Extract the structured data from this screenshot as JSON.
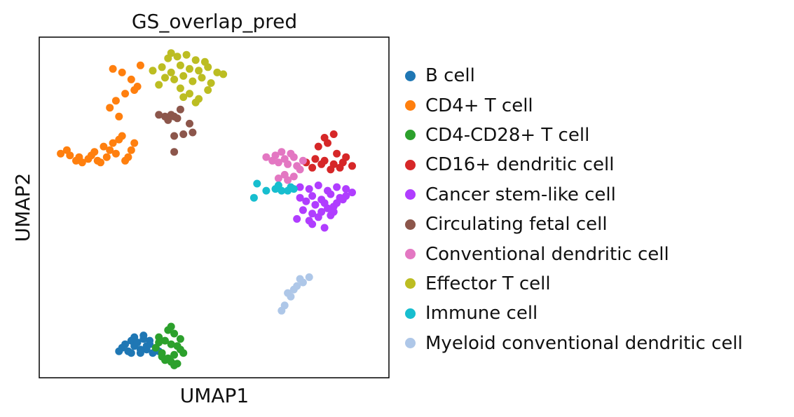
{
  "chart_data": {
    "type": "scatter",
    "title": "GS_overlap_pred",
    "xlabel": "UMAP1",
    "ylabel": "UMAP2",
    "grid": false,
    "legend_placement": "right, outside plot",
    "series": [
      {
        "name": "B cell",
        "color": "#1f77b4",
        "x": [
          -4.2,
          -4.0,
          -3.8,
          -3.6,
          -3.4,
          -3.3,
          -3.1,
          -3.0,
          -3.9,
          -3.7,
          -3.5,
          -3.2,
          -4.1,
          -3.8,
          -3.4,
          -3.6,
          -3.9,
          -3.3,
          -4.3,
          -3.5
        ],
        "y": [
          -8.6,
          -8.8,
          -8.5,
          -8.9,
          -8.7,
          -8.4,
          -8.6,
          -8.8,
          -8.2,
          -8.3,
          -8.1,
          -8.9,
          -8.4,
          -8.0,
          -8.5,
          -8.7,
          -8.9,
          -8.2,
          -8.8,
          -7.9
        ]
      },
      {
        "name": "CD4+ T cell",
        "color": "#ff7f0e",
        "x": [
          -6.2,
          -5.9,
          -5.6,
          -5.3,
          -5.0,
          -4.7,
          -4.4,
          -4.6,
          -4.8,
          -5.1,
          -4.5,
          -4.3,
          -4.9,
          -4.2,
          -4.1,
          -4.0,
          -3.9,
          -3.8,
          -4.3,
          -4.6,
          -4.4,
          -4.1,
          -3.7,
          -3.9,
          -4.2,
          -4.5,
          -3.6,
          -3.8,
          -5.7,
          -6.0,
          -5.5,
          -5.2
        ],
        "y": [
          2.4,
          2.3,
          2.2,
          2.1,
          2.0,
          2.2,
          2.4,
          2.6,
          2.8,
          2.5,
          3.0,
          3.2,
          1.9,
          3.4,
          2.0,
          2.2,
          2.6,
          3.0,
          4.5,
          5.0,
          5.4,
          5.8,
          6.2,
          6.6,
          7.0,
          7.2,
          7.4,
          6.0,
          2.0,
          2.6,
          1.9,
          2.3
        ]
      },
      {
        "name": "CD4-CD28+ T cell",
        "color": "#2ca02c",
        "x": [
          -3.1,
          -2.9,
          -2.7,
          -2.5,
          -2.3,
          -2.6,
          -2.8,
          -3.0,
          -2.4,
          -2.2,
          -2.6,
          -2.9,
          -2.5,
          -2.7,
          -2.3,
          -2.8,
          -3.0,
          -2.6,
          -2.4,
          -2.5
        ],
        "y": [
          -8.6,
          -8.9,
          -9.2,
          -9.0,
          -8.7,
          -8.4,
          -8.2,
          -8.0,
          -8.5,
          -8.9,
          -9.4,
          -9.1,
          -7.8,
          -7.6,
          -8.1,
          -9.3,
          -8.3,
          -7.4,
          -9.5,
          -9.6
        ]
      },
      {
        "name": "CD16+ dendritic cell",
        "color": "#d62728",
        "x": [
          1.8,
          2.1,
          2.4,
          2.7,
          3.0,
          3.3,
          2.9,
          2.6,
          2.3,
          2.0,
          2.8,
          3.1,
          2.5,
          2.2,
          2.7,
          2.4
        ],
        "y": [
          1.9,
          2.1,
          2.0,
          1.8,
          1.9,
          1.7,
          1.6,
          1.5,
          1.8,
          1.6,
          2.4,
          2.2,
          3.0,
          2.8,
          3.5,
          3.3
        ]
      },
      {
        "name": "Cancer stem-like cell",
        "color": "#b03dff",
        "x": [
          1.6,
          1.9,
          2.2,
          2.5,
          2.8,
          3.1,
          3.3,
          2.0,
          2.3,
          2.6,
          2.9,
          1.8,
          2.1,
          2.4,
          2.7,
          3.0,
          1.7,
          2.0,
          2.3,
          2.6,
          1.5,
          1.9,
          2.2,
          2.5,
          2.8,
          3.1,
          2.0,
          2.4,
          1.6,
          2.7
        ],
        "y": [
          0.5,
          0.4,
          0.6,
          0.3,
          0.5,
          0.4,
          0.2,
          0.0,
          -0.2,
          0.1,
          -0.1,
          -0.3,
          -0.5,
          -0.4,
          -0.6,
          -0.2,
          -0.8,
          -1.0,
          -0.9,
          -1.1,
          -1.3,
          -1.4,
          -1.2,
          -0.7,
          -0.4,
          0.0,
          -1.6,
          -1.8,
          -0.1,
          -0.9
        ]
      },
      {
        "name": "Circulating fetal cell",
        "color": "#8c564b",
        "x": [
          -3.0,
          -2.8,
          -2.6,
          -2.4,
          -2.7,
          -2.5,
          -2.3,
          -2.0,
          -1.9,
          -2.5,
          -2.2,
          -2.5
        ],
        "y": [
          4.6,
          4.5,
          4.6,
          4.4,
          4.3,
          4.5,
          4.9,
          4.1,
          3.6,
          3.4,
          3.5,
          2.5
        ]
      },
      {
        "name": "Conventional dendritic cell",
        "color": "#e377c2",
        "x": [
          0.5,
          0.8,
          1.1,
          1.4,
          1.7,
          0.9,
          1.2,
          1.5,
          0.7,
          1.0,
          1.3,
          1.6,
          1.1,
          1.4,
          0.9,
          1.2
        ],
        "y": [
          2.2,
          2.3,
          2.1,
          2.2,
          2.0,
          1.9,
          1.8,
          1.7,
          2.0,
          2.5,
          2.4,
          1.5,
          1.2,
          1.1,
          1.0,
          0.9
        ]
      },
      {
        "name": "Effector T cell",
        "color": "#bcbd22",
        "x": [
          -3.2,
          -2.9,
          -2.6,
          -2.3,
          -2.0,
          -1.7,
          -1.4,
          -1.1,
          -0.9,
          -2.8,
          -2.5,
          -2.2,
          -1.9,
          -1.6,
          -1.3,
          -2.7,
          -2.4,
          -2.1,
          -1.8,
          -1.5,
          -2.3,
          -2.0,
          -1.7,
          -3.0,
          -1.8,
          -2.6,
          -1.4,
          -2.2
        ],
        "y": [
          7.1,
          7.3,
          7.0,
          7.4,
          7.2,
          7.1,
          7.3,
          7.0,
          6.9,
          6.7,
          6.6,
          6.8,
          6.5,
          6.7,
          6.4,
          7.8,
          7.9,
          8.0,
          7.7,
          7.6,
          6.1,
          5.8,
          5.5,
          6.3,
          5.3,
          8.1,
          6.0,
          5.6
        ]
      },
      {
        "name": "Immune cell",
        "color": "#17becf",
        "x": [
          0.2,
          0.5,
          0.8,
          1.0,
          1.2,
          1.4,
          0.1,
          0.9,
          1.3
        ],
        "y": [
          0.7,
          0.3,
          0.4,
          0.3,
          0.3,
          0.4,
          -0.1,
          0.6,
          0.5
        ]
      },
      {
        "name": "Myeloid conventional dendritic cell",
        "color": "#aec7e8",
        "x": [
          1.2,
          1.4,
          1.5,
          1.7,
          1.6,
          1.9,
          1.3,
          1.1,
          1.0
        ],
        "y": [
          -5.5,
          -5.3,
          -5.1,
          -4.9,
          -4.7,
          -4.6,
          -5.7,
          -6.2,
          -6.5
        ]
      }
    ]
  }
}
